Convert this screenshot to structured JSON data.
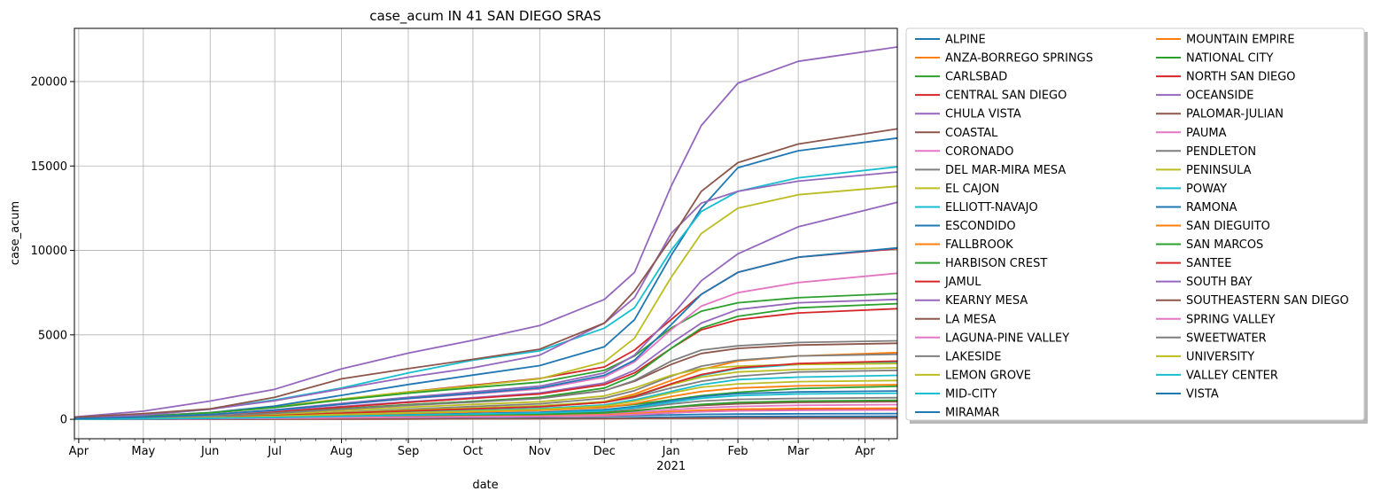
{
  "chart_data": {
    "type": "line",
    "title": "case_acum IN 41 SAN DIEGO SRAS",
    "xlabel": "date",
    "ylabel": "case_acum",
    "x_ticks": [
      {
        "date": "2020-04-01",
        "label": "Apr",
        "sublabel": ""
      },
      {
        "date": "2020-05-01",
        "label": "May",
        "sublabel": ""
      },
      {
        "date": "2020-06-01",
        "label": "Jun",
        "sublabel": ""
      },
      {
        "date": "2020-07-01",
        "label": "Jul",
        "sublabel": ""
      },
      {
        "date": "2020-08-01",
        "label": "Aug",
        "sublabel": ""
      },
      {
        "date": "2020-09-01",
        "label": "Sep",
        "sublabel": ""
      },
      {
        "date": "2020-10-01",
        "label": "Oct",
        "sublabel": ""
      },
      {
        "date": "2020-11-01",
        "label": "Nov",
        "sublabel": ""
      },
      {
        "date": "2020-12-01",
        "label": "Dec",
        "sublabel": ""
      },
      {
        "date": "2021-01-01",
        "label": "Jan",
        "sublabel": "2021"
      },
      {
        "date": "2021-02-01",
        "label": "Feb",
        "sublabel": ""
      },
      {
        "date": "2021-03-01",
        "label": "Mar",
        "sublabel": ""
      },
      {
        "date": "2021-04-01",
        "label": "Apr",
        "sublabel": ""
      }
    ],
    "y_ticks": [
      0,
      5000,
      10000,
      15000,
      20000
    ],
    "xlim": [
      "2020-03-30",
      "2021-04-16"
    ],
    "ylim": [
      -1150,
      23150
    ],
    "grid": true,
    "legend_position": "outside-right",
    "legend_columns": 2,
    "sample_dates": [
      "2020-03-30",
      "2020-05-01",
      "2020-06-01",
      "2020-07-01",
      "2020-08-01",
      "2020-09-01",
      "2020-10-01",
      "2020-11-01",
      "2020-12-01",
      "2020-12-15",
      "2021-01-01",
      "2021-01-15",
      "2021-02-01",
      "2021-03-01",
      "2021-04-16"
    ],
    "series": [
      {
        "name": "ALPINE",
        "color": "#1f77b4",
        "values": [
          10,
          25,
          45,
          70,
          100,
          130,
          150,
          170,
          190,
          220,
          260,
          295,
          310,
          325,
          340
        ]
      },
      {
        "name": "ANZA-BORREGO SPRINGS",
        "color": "#ff7f0e",
        "values": [
          0,
          2,
          4,
          8,
          12,
          18,
          25,
          30,
          40,
          50,
          60,
          70,
          78,
          85,
          90
        ]
      },
      {
        "name": "CARLSBAD",
        "color": "#2ca02c",
        "values": [
          20,
          60,
          110,
          190,
          290,
          390,
          470,
          560,
          720,
          880,
          1150,
          1400,
          1600,
          1820,
          1950
        ]
      },
      {
        "name": "CENTRAL SAN DIEGO",
        "color": "#d62728",
        "values": [
          70,
          200,
          380,
          720,
          1180,
          1620,
          2020,
          2420,
          3100,
          4100,
          5900,
          7400,
          8700,
          9600,
          10100
        ]
      },
      {
        "name": "CHULA VISTA",
        "color": "#9467bd",
        "values": [
          140,
          480,
          1080,
          1780,
          2990,
          3920,
          4680,
          5550,
          7100,
          8700,
          13800,
          17400,
          19900,
          21200,
          22050
        ]
      },
      {
        "name": "COASTAL",
        "color": "#8c564b",
        "values": [
          10,
          30,
          60,
          110,
          170,
          230,
          280,
          330,
          420,
          530,
          700,
          820,
          920,
          1000,
          1050
        ]
      },
      {
        "name": "CORONADO",
        "color": "#e377c2",
        "values": [
          10,
          25,
          45,
          80,
          130,
          180,
          220,
          260,
          330,
          420,
          560,
          680,
          760,
          830,
          870
        ]
      },
      {
        "name": "DEL MAR-MIRA MESA",
        "color": "#7f7f7f",
        "values": [
          30,
          80,
          150,
          260,
          400,
          540,
          660,
          780,
          1000,
          1300,
          1850,
          2250,
          2550,
          2800,
          2900
        ]
      },
      {
        "name": "EL CAJON",
        "color": "#bcbd22",
        "values": [
          60,
          200,
          400,
          750,
          1200,
          1620,
          1980,
          2400,
          3400,
          4800,
          8400,
          11000,
          12500,
          13300,
          13800
        ]
      },
      {
        "name": "ELLIOTT-NAVAJO",
        "color": "#17becf",
        "values": [
          20,
          60,
          120,
          220,
          360,
          500,
          620,
          760,
          1000,
          1350,
          2050,
          2600,
          3000,
          3250,
          3400
        ]
      },
      {
        "name": "ESCONDIDO",
        "color": "#1f77b4",
        "values": [
          50,
          180,
          400,
          780,
          1420,
          2060,
          2620,
          3180,
          4300,
          5900,
          9700,
          12500,
          14900,
          15900,
          16650
        ]
      },
      {
        "name": "FALLBROOK",
        "color": "#ff7f0e",
        "values": [
          20,
          60,
          130,
          230,
          380,
          520,
          640,
          770,
          1050,
          1500,
          2300,
          2950,
          3450,
          3750,
          3950
        ]
      },
      {
        "name": "HARBISON CREST",
        "color": "#2ca02c",
        "values": [
          10,
          30,
          60,
          100,
          150,
          200,
          240,
          290,
          380,
          500,
          720,
          880,
          1000,
          1080,
          1130
        ]
      },
      {
        "name": "JAMUL",
        "color": "#d62728",
        "values": [
          5,
          15,
          30,
          50,
          80,
          110,
          135,
          160,
          210,
          270,
          380,
          460,
          520,
          560,
          590
        ]
      },
      {
        "name": "KEARNY MESA",
        "color": "#9467bd",
        "values": [
          30,
          100,
          230,
          460,
          760,
          1040,
          1280,
          1560,
          2150,
          2900,
          4500,
          5700,
          6500,
          6900,
          7100
        ]
      },
      {
        "name": "LA MESA",
        "color": "#8c564b",
        "values": [
          30,
          100,
          200,
          380,
          640,
          870,
          1060,
          1260,
          1700,
          2250,
          3250,
          3900,
          4200,
          4400,
          4500
        ]
      },
      {
        "name": "LAGUNA-PINE VALLEY",
        "color": "#e377c2",
        "values": [
          0,
          2,
          5,
          10,
          15,
          20,
          25,
          30,
          40,
          50,
          60,
          70,
          75,
          80,
          85
        ]
      },
      {
        "name": "LAKESIDE",
        "color": "#7f7f7f",
        "values": [
          20,
          60,
          120,
          240,
          420,
          600,
          760,
          920,
          1250,
          1700,
          2550,
          3150,
          3500,
          3750,
          3850
        ]
      },
      {
        "name": "LEMON GROVE",
        "color": "#bcbd22",
        "values": [
          20,
          70,
          150,
          300,
          520,
          720,
          880,
          1040,
          1380,
          1850,
          2600,
          3000,
          3150,
          3250,
          3300
        ]
      },
      {
        "name": "MID-CITY",
        "color": "#17becf",
        "values": [
          80,
          250,
          600,
          1150,
          1850,
          2750,
          3500,
          4050,
          5400,
          6600,
          10000,
          12300,
          13500,
          14300,
          14950
        ]
      },
      {
        "name": "MIRAMAR",
        "color": "#1f77b4",
        "values": [
          0,
          5,
          10,
          20,
          30,
          40,
          50,
          60,
          80,
          100,
          130,
          150,
          165,
          175,
          180
        ]
      },
      {
        "name": "MOUNTAIN EMPIRE",
        "color": "#ff7f0e",
        "values": [
          5,
          15,
          30,
          60,
          100,
          140,
          170,
          200,
          260,
          340,
          460,
          540,
          600,
          640,
          660
        ]
      },
      {
        "name": "NATIONAL CITY",
        "color": "#2ca02c",
        "values": [
          40,
          160,
          380,
          700,
          1150,
          1550,
          1880,
          2200,
          2900,
          3750,
          5400,
          6400,
          6900,
          7200,
          7450
        ]
      },
      {
        "name": "NORTH SAN DIEGO",
        "color": "#d62728",
        "values": [
          30,
          100,
          220,
          430,
          720,
          1000,
          1240,
          1500,
          2050,
          2750,
          4200,
          5300,
          5900,
          6300,
          6550
        ]
      },
      {
        "name": "OCEANSIDE",
        "color": "#9467bd",
        "values": [
          40,
          130,
          290,
          560,
          940,
          1300,
          1620,
          1960,
          2750,
          3800,
          6100,
          8200,
          9800,
          11400,
          12850
        ]
      },
      {
        "name": "PALOMAR-JULIAN",
        "color": "#8c564b",
        "values": [
          0,
          3,
          6,
          10,
          15,
          20,
          25,
          30,
          40,
          50,
          65,
          75,
          85,
          90,
          95
        ]
      },
      {
        "name": "PAUMA",
        "color": "#e377c2",
        "values": [
          5,
          15,
          30,
          55,
          90,
          120,
          145,
          170,
          220,
          280,
          380,
          450,
          500,
          530,
          550
        ]
      },
      {
        "name": "PENDLETON",
        "color": "#7f7f7f",
        "values": [
          10,
          30,
          60,
          120,
          200,
          270,
          330,
          390,
          500,
          640,
          900,
          1080,
          1180,
          1240,
          1280
        ]
      },
      {
        "name": "PENINSULA",
        "color": "#bcbd22",
        "values": [
          20,
          60,
          130,
          240,
          390,
          540,
          670,
          800,
          1050,
          1400,
          2050,
          2500,
          2800,
          2950,
          3050
        ]
      },
      {
        "name": "POWAY",
        "color": "#17becf",
        "values": [
          20,
          60,
          110,
          200,
          320,
          430,
          530,
          640,
          850,
          1150,
          1650,
          2050,
          2350,
          2500,
          2600
        ]
      },
      {
        "name": "RAMONA",
        "color": "#1f77b4",
        "values": [
          10,
          30,
          60,
          120,
          200,
          280,
          350,
          420,
          570,
          760,
          1100,
          1350,
          1520,
          1620,
          1680
        ]
      },
      {
        "name": "SAN DIEGUITO",
        "color": "#ff7f0e",
        "values": [
          15,
          45,
          90,
          160,
          260,
          360,
          440,
          530,
          700,
          930,
          1350,
          1650,
          1850,
          1980,
          2050
        ]
      },
      {
        "name": "SAN MARCOS",
        "color": "#2ca02c",
        "values": [
          30,
          90,
          190,
          370,
          620,
          860,
          1060,
          1300,
          1850,
          2600,
          4200,
          5400,
          6100,
          6600,
          6850
        ]
      },
      {
        "name": "SANTEE",
        "color": "#d62728",
        "values": [
          20,
          60,
          120,
          220,
          360,
          500,
          620,
          740,
          1000,
          1350,
          2100,
          2650,
          3050,
          3300,
          3450
        ]
      },
      {
        "name": "SOUTH BAY",
        "color": "#9467bd",
        "values": [
          60,
          250,
          600,
          1100,
          1800,
          2500,
          3050,
          3800,
          5700,
          7200,
          11000,
          12800,
          13500,
          14100,
          14650
        ]
      },
      {
        "name": "SOUTHEASTERN SAN DIEGO",
        "color": "#8c564b",
        "values": [
          120,
          340,
          620,
          1300,
          2400,
          3000,
          3550,
          4150,
          5700,
          7600,
          10700,
          13500,
          15200,
          16300,
          17200
        ]
      },
      {
        "name": "SPRING VALLEY",
        "color": "#e377c2",
        "values": [
          30,
          110,
          260,
          520,
          880,
          1220,
          1500,
          1800,
          2500,
          3400,
          5300,
          6700,
          7500,
          8100,
          8650
        ]
      },
      {
        "name": "SWEETWATER",
        "color": "#7f7f7f",
        "values": [
          20,
          80,
          180,
          360,
          600,
          830,
          1020,
          1230,
          1700,
          2300,
          3450,
          4100,
          4350,
          4550,
          4650
        ]
      },
      {
        "name": "UNIVERSITY",
        "color": "#bcbd22",
        "values": [
          20,
          50,
          100,
          180,
          290,
          390,
          480,
          580,
          790,
          1060,
          1560,
          1900,
          2100,
          2230,
          2300
        ]
      },
      {
        "name": "VALLEY CENTER",
        "color": "#17becf",
        "values": [
          10,
          30,
          60,
          110,
          180,
          250,
          310,
          370,
          500,
          680,
          1000,
          1250,
          1400,
          1500,
          1550
        ]
      },
      {
        "name": "VISTA",
        "color": "#1f77b4",
        "values": [
          40,
          130,
          280,
          540,
          890,
          1240,
          1530,
          1860,
          2600,
          3500,
          5600,
          7400,
          8700,
          9600,
          10150
        ]
      }
    ]
  }
}
